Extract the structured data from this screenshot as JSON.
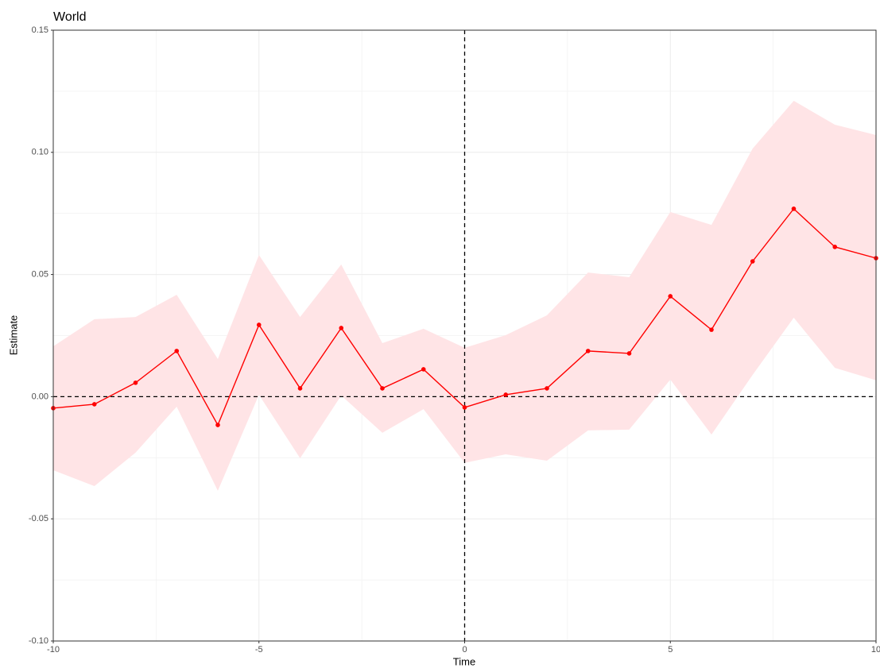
{
  "chart_data": {
    "type": "line",
    "title": "World",
    "x_label": "Time",
    "y_label": "Estimate",
    "x": [
      -10,
      -9,
      -8,
      -7,
      -6,
      -5,
      -4,
      -3,
      -2,
      -1,
      0,
      1,
      2,
      3,
      4,
      5,
      6,
      7,
      8,
      9,
      10
    ],
    "series": [
      {
        "color": "#ff0000",
        "band_color": "#ffe4e6",
        "values": [
          -0.0047,
          -0.0031,
          0.0057,
          0.0187,
          -0.0116,
          0.0294,
          0.0034,
          0.0281,
          0.0034,
          0.0112,
          -0.0044,
          0.0008,
          0.0034,
          0.0187,
          0.0177,
          0.0411,
          0.0274,
          0.0554,
          0.0769,
          0.0613,
          0.0567
        ],
        "upper": [
          0.0206,
          0.0317,
          0.0326,
          0.0417,
          0.0154,
          0.058,
          0.0326,
          0.0541,
          0.0219,
          0.0278,
          0.02,
          0.0252,
          0.0333,
          0.0508,
          0.0489,
          0.0756,
          0.0703,
          0.1015,
          0.1211,
          0.1113,
          0.1071
        ],
        "lower": [
          -0.0301,
          -0.0366,
          -0.0229,
          -0.0041,
          -0.0385,
          0.0008,
          -0.0252,
          0.0005,
          -0.0148,
          -0.0051,
          -0.0271,
          -0.0236,
          -0.0262,
          -0.0138,
          -0.0135,
          0.007,
          -0.0155,
          0.0089,
          0.0323,
          0.0118,
          0.0067
        ]
      }
    ],
    "xlim": [
      -10,
      10
    ],
    "xticks": [
      -10,
      -5,
      0,
      5,
      10
    ],
    "ylim": [
      -0.1,
      0.15
    ],
    "yticks": [
      {
        "value": -0.1,
        "label": "-0.10"
      },
      {
        "value": -0.05,
        "label": "-0.05"
      },
      {
        "value": 0,
        "label": "0.00"
      },
      {
        "value": 0.05,
        "label": "0.05"
      },
      {
        "value": 0.1,
        "label": "0.10"
      },
      {
        "value": 0.15,
        "label": "0.15"
      }
    ],
    "vline": 0,
    "hline": 0,
    "grid": true
  }
}
